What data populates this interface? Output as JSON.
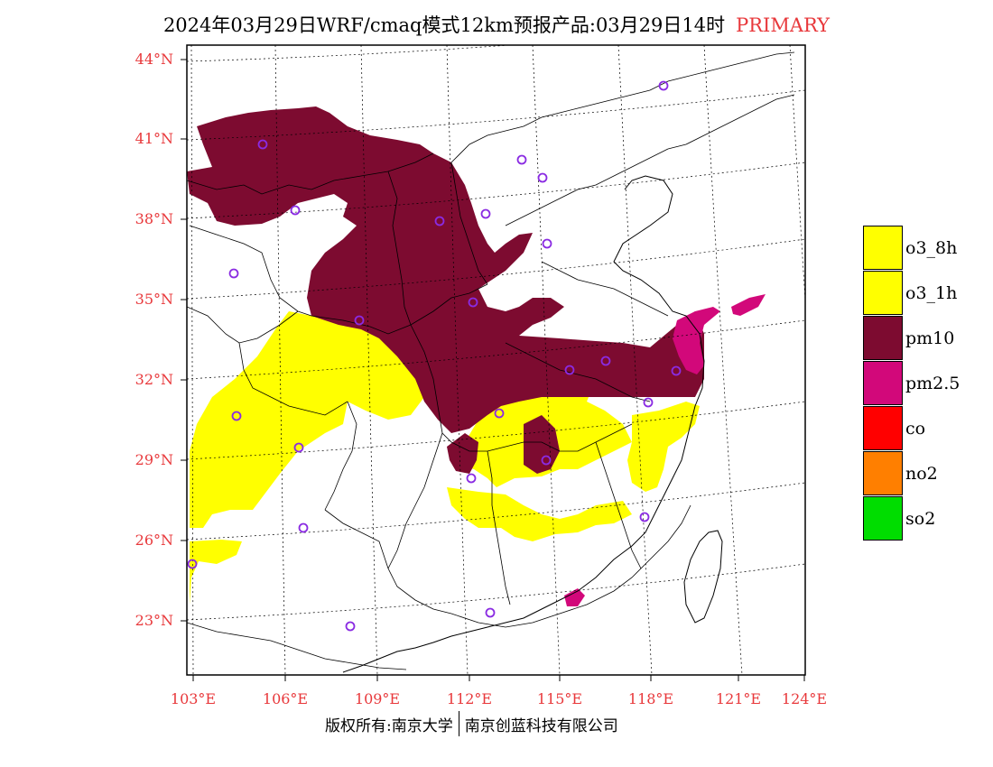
{
  "title": {
    "main": "2024年03月29日WRF/cmaq模式12km预报产品:03月29日14时",
    "tag": "PRIMARY"
  },
  "axes": {
    "lat_labels": [
      "44°N",
      "41°N",
      "38°N",
      "35°N",
      "32°N",
      "29°N",
      "26°N",
      "23°N"
    ],
    "lon_labels": [
      "103°E",
      "106°E",
      "109°E",
      "112°E",
      "115°E",
      "118°E",
      "121°E",
      "124°E"
    ]
  },
  "legend": {
    "items": [
      {
        "label": "o3_8h",
        "color": "#ffff00"
      },
      {
        "label": "o3_1h",
        "color": "#ffff00"
      },
      {
        "label": "pm10",
        "color": "#7d0b30"
      },
      {
        "label": "pm2.5",
        "color": "#d2087a"
      },
      {
        "label": "co",
        "color": "#ff0000"
      },
      {
        "label": "no2",
        "color": "#ff7f00"
      },
      {
        "label": "so2",
        "color": "#00dd00"
      }
    ]
  },
  "footer": {
    "left": "版权所有:南京大学",
    "right": "南京创蓝科技有限公司"
  },
  "colors": {
    "label_red": "#e8383b",
    "pm10": "#7d0b30",
    "pm25": "#d2087a",
    "o3": "#ffff00",
    "station": "#8a2be2"
  }
}
